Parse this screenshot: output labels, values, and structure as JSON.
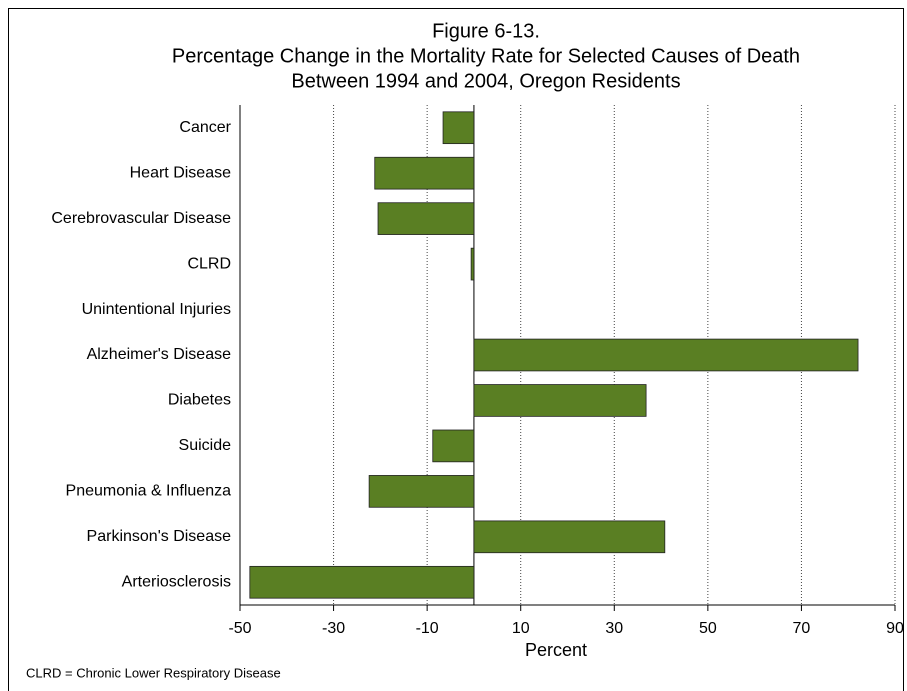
{
  "chart_data": {
    "type": "bar",
    "orientation": "horizontal",
    "title": [
      "Figure 6-13.",
      "Percentage Change in the Mortality Rate for Selected Causes of Death",
      "Between 1994 and 2004, Oregon Residents"
    ],
    "categories": [
      "Cancer",
      "Heart Disease",
      "Cerebrovascular Disease",
      "CLRD",
      "Unintentional Injuries",
      "Alzheimer's Disease",
      "Diabetes",
      "Suicide",
      "Pneumonia & Influenza",
      "Parkinson's Disease",
      "Arteriosclerosis"
    ],
    "values": [
      -6.6,
      -21.2,
      -20.5,
      -0.6,
      0,
      82.1,
      36.8,
      -8.8,
      -22.4,
      40.8,
      -47.9
    ],
    "color": "#5a7f23",
    "xlabel": "Percent",
    "xlim": [
      -50,
      90
    ],
    "xticks": [
      -50,
      -30,
      -10,
      10,
      30,
      50,
      70,
      90
    ],
    "grid": true,
    "footnote": "CLRD = Chronic Lower Respiratory Disease"
  }
}
